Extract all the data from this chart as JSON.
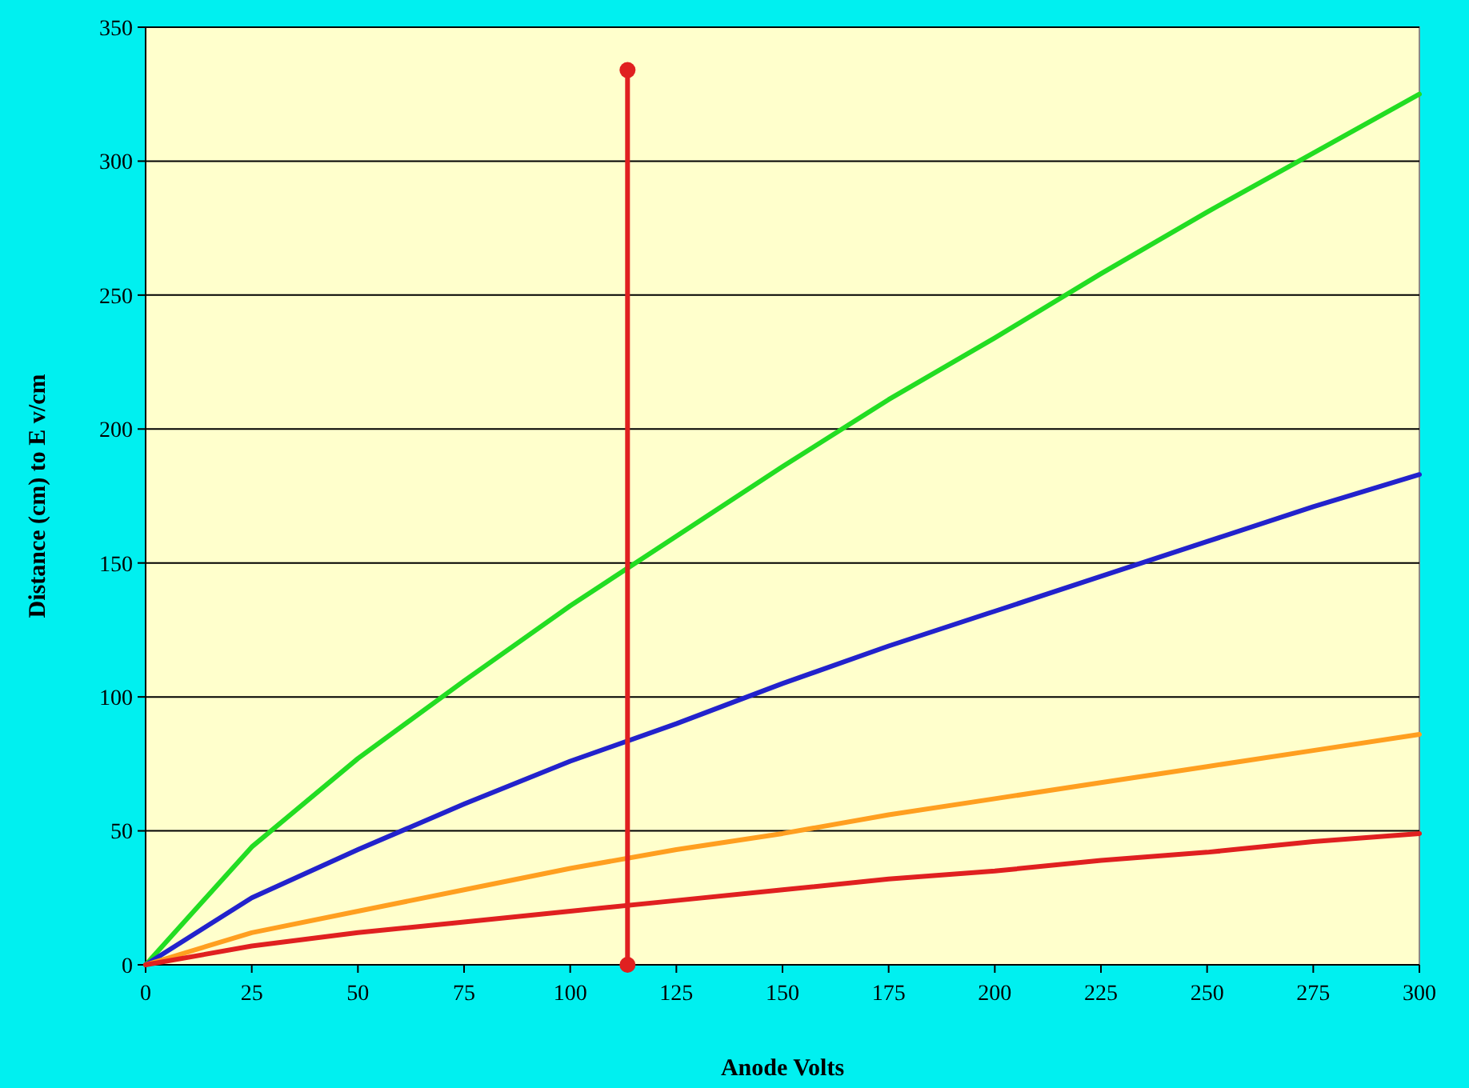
{
  "chart_data": {
    "type": "line",
    "xlabel": "Anode Volts",
    "ylabel": "Distance (cm) to E v/cm",
    "x": [
      0,
      25,
      50,
      75,
      100,
      125,
      150,
      175,
      200,
      225,
      250,
      275,
      300
    ],
    "series": [
      {
        "color": "#22dd22",
        "values": [
          0,
          44,
          77,
          106,
          134,
          160,
          186,
          211,
          234,
          258,
          281,
          303,
          325
        ]
      },
      {
        "color": "#2222cc",
        "values": [
          0,
          25,
          43,
          60,
          76,
          90,
          105,
          119,
          132,
          145,
          158,
          171,
          183
        ]
      },
      {
        "color": "#ff9f20",
        "values": [
          0,
          12,
          20,
          28,
          36,
          43,
          49,
          56,
          62,
          68,
          74,
          80,
          86
        ]
      },
      {
        "color": "#e02020",
        "values": [
          0,
          7,
          12,
          16,
          20,
          24,
          28,
          32,
          35,
          39,
          42,
          46,
          49
        ]
      },
      {
        "color": "#e02020",
        "x": [
          113.5,
          113.5
        ],
        "values": [
          0,
          334
        ],
        "marker": "circle"
      }
    ],
    "xlim": [
      0,
      300
    ],
    "xticks": [
      0,
      25,
      50,
      75,
      100,
      125,
      150,
      175,
      200,
      225,
      250,
      275,
      300
    ],
    "ylim": [
      0,
      350
    ],
    "yticks": [
      0,
      50,
      100,
      150,
      200,
      250,
      300,
      350
    ],
    "grid": "y"
  }
}
